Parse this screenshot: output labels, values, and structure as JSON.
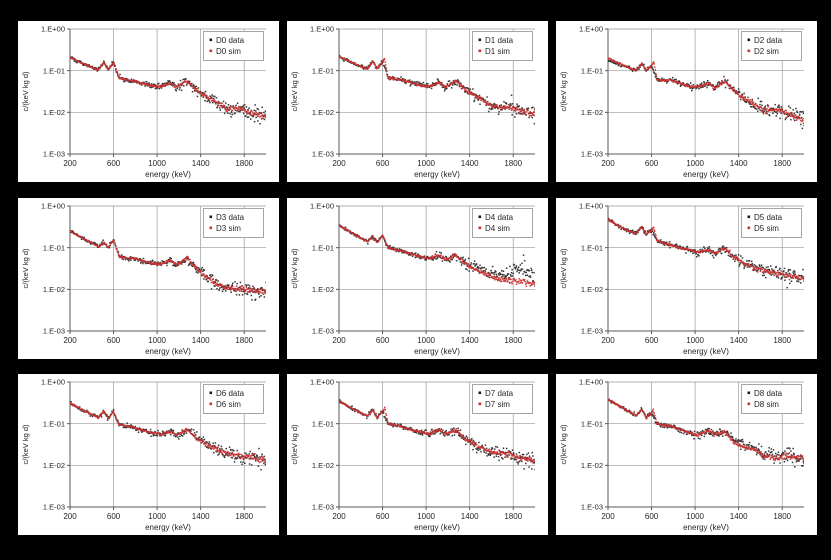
{
  "page": {
    "background": "#000000",
    "panel_background": "#ffffff"
  },
  "colors": {
    "data_points": "#1a1a1a",
    "sim_points": "#cc3030",
    "grid": "#999999",
    "axis": "#595959",
    "legend_border": "#a6a6a6",
    "text": "#262626"
  },
  "chart_data": {
    "type": "scatter",
    "shared_axes": {
      "xlabel": "energy (keV)",
      "ylabel": "c/(keV kg d)",
      "x_ticks": [
        200,
        600,
        1000,
        1400,
        1800
      ],
      "x_range": [
        200,
        2000
      ],
      "y_scale": "log",
      "y_tick_labels": [
        "1.E+00",
        "1.E-01",
        "1.E-02",
        "1.E-03"
      ],
      "y_tick_decades": [
        0,
        -1,
        -2,
        -3
      ],
      "y_range": [
        0.001,
        1.0
      ],
      "grid_x": [
        600,
        1000,
        1400,
        1800
      ],
      "grid_y_decades": [
        0,
        -1,
        -2
      ],
      "legend_position": "top-right"
    },
    "charts": [
      {
        "id": "D0",
        "legend": [
          "D0 data",
          "D0 sim"
        ],
        "profile": [
          [
            200,
            0.21
          ],
          [
            300,
            0.155
          ],
          [
            400,
            0.12
          ],
          [
            460,
            0.105
          ],
          [
            511,
            0.16
          ],
          [
            550,
            0.105
          ],
          [
            600,
            0.16
          ],
          [
            650,
            0.068
          ],
          [
            720,
            0.06
          ],
          [
            780,
            0.058
          ],
          [
            860,
            0.05
          ],
          [
            950,
            0.044
          ],
          [
            1030,
            0.042
          ],
          [
            1120,
            0.05
          ],
          [
            1180,
            0.04
          ],
          [
            1275,
            0.056
          ],
          [
            1360,
            0.034
          ],
          [
            1450,
            0.024
          ],
          [
            1550,
            0.017
          ],
          [
            1650,
            0.012
          ],
          [
            1760,
            0.013
          ],
          [
            1850,
            0.01
          ],
          [
            1950,
            0.0085
          ],
          [
            2000,
            0.0075
          ]
        ],
        "sim_delta": null
      },
      {
        "id": "D1",
        "legend": [
          "D1 data",
          "D1 sim"
        ],
        "profile": [
          [
            200,
            0.22
          ],
          [
            300,
            0.165
          ],
          [
            400,
            0.125
          ],
          [
            460,
            0.11
          ],
          [
            511,
            0.17
          ],
          [
            550,
            0.11
          ],
          [
            600,
            0.165
          ],
          [
            650,
            0.07
          ],
          [
            720,
            0.062
          ],
          [
            780,
            0.06
          ],
          [
            860,
            0.052
          ],
          [
            950,
            0.045
          ],
          [
            1030,
            0.042
          ],
          [
            1120,
            0.052
          ],
          [
            1180,
            0.04
          ],
          [
            1275,
            0.057
          ],
          [
            1360,
            0.035
          ],
          [
            1450,
            0.025
          ],
          [
            1550,
            0.018
          ],
          [
            1650,
            0.013
          ],
          [
            1760,
            0.0135
          ],
          [
            1850,
            0.011
          ],
          [
            1950,
            0.0095
          ],
          [
            2000,
            0.009
          ]
        ],
        "sim_delta": [
          [
            620,
            0.19
          ]
        ]
      },
      {
        "id": "D2",
        "legend": [
          "D2 data",
          "D2 sim"
        ],
        "profile": [
          [
            200,
            0.175
          ],
          [
            300,
            0.14
          ],
          [
            400,
            0.115
          ],
          [
            460,
            0.1
          ],
          [
            511,
            0.15
          ],
          [
            550,
            0.1
          ],
          [
            600,
            0.13
          ],
          [
            650,
            0.062
          ],
          [
            720,
            0.058
          ],
          [
            780,
            0.06
          ],
          [
            860,
            0.05
          ],
          [
            950,
            0.042
          ],
          [
            1030,
            0.04
          ],
          [
            1120,
            0.05
          ],
          [
            1180,
            0.038
          ],
          [
            1275,
            0.055
          ],
          [
            1360,
            0.032
          ],
          [
            1450,
            0.022
          ],
          [
            1550,
            0.015
          ],
          [
            1650,
            0.011
          ],
          [
            1760,
            0.0115
          ],
          [
            1850,
            0.009
          ],
          [
            1950,
            0.0075
          ],
          [
            2000,
            0.007
          ]
        ],
        "sim_delta": [
          [
            200,
            0.2
          ],
          [
            300,
            0.15
          ],
          [
            620,
            0.17
          ]
        ]
      },
      {
        "id": "D3",
        "legend": [
          "D3 data",
          "D3 sim"
        ],
        "profile": [
          [
            200,
            0.25
          ],
          [
            300,
            0.18
          ],
          [
            400,
            0.13
          ],
          [
            460,
            0.105
          ],
          [
            511,
            0.135
          ],
          [
            550,
            0.1
          ],
          [
            600,
            0.155
          ],
          [
            650,
            0.062
          ],
          [
            720,
            0.055
          ],
          [
            780,
            0.057
          ],
          [
            860,
            0.048
          ],
          [
            950,
            0.042
          ],
          [
            1030,
            0.04
          ],
          [
            1120,
            0.05
          ],
          [
            1180,
            0.038
          ],
          [
            1275,
            0.056
          ],
          [
            1360,
            0.032
          ],
          [
            1450,
            0.02
          ],
          [
            1550,
            0.013
          ],
          [
            1650,
            0.0105
          ],
          [
            1760,
            0.01
          ],
          [
            1850,
            0.0095
          ],
          [
            1950,
            0.009
          ],
          [
            2000,
            0.0088
          ]
        ],
        "sim_delta": null
      },
      {
        "id": "D4",
        "legend": [
          "D4 data",
          "D4 sim"
        ],
        "profile": [
          [
            200,
            0.35
          ],
          [
            300,
            0.24
          ],
          [
            400,
            0.17
          ],
          [
            460,
            0.14
          ],
          [
            511,
            0.185
          ],
          [
            550,
            0.13
          ],
          [
            600,
            0.2
          ],
          [
            650,
            0.1
          ],
          [
            720,
            0.088
          ],
          [
            780,
            0.082
          ],
          [
            860,
            0.072
          ],
          [
            950,
            0.06
          ],
          [
            1030,
            0.055
          ],
          [
            1120,
            0.066
          ],
          [
            1180,
            0.052
          ],
          [
            1275,
            0.065
          ],
          [
            1360,
            0.042
          ],
          [
            1450,
            0.035
          ],
          [
            1550,
            0.028
          ],
          [
            1650,
            0.022
          ],
          [
            1760,
            0.023
          ],
          [
            1850,
            0.03
          ],
          [
            1900,
            0.035
          ],
          [
            1950,
            0.028
          ],
          [
            2000,
            0.019
          ]
        ],
        "sim_delta": [
          [
            1450,
            0.03
          ],
          [
            1550,
            0.023
          ],
          [
            1650,
            0.018
          ],
          [
            1760,
            0.016
          ],
          [
            1850,
            0.015
          ],
          [
            1900,
            0.0148
          ],
          [
            1950,
            0.0145
          ],
          [
            2000,
            0.014
          ]
        ]
      },
      {
        "id": "D5",
        "legend": [
          "D5 data",
          "D5 sim"
        ],
        "profile": [
          [
            200,
            0.48
          ],
          [
            300,
            0.33
          ],
          [
            400,
            0.245
          ],
          [
            460,
            0.225
          ],
          [
            511,
            0.32
          ],
          [
            550,
            0.21
          ],
          [
            600,
            0.27
          ],
          [
            650,
            0.15
          ],
          [
            720,
            0.125
          ],
          [
            780,
            0.115
          ],
          [
            860,
            0.1
          ],
          [
            950,
            0.088
          ],
          [
            1030,
            0.077
          ],
          [
            1120,
            0.088
          ],
          [
            1180,
            0.074
          ],
          [
            1275,
            0.095
          ],
          [
            1360,
            0.058
          ],
          [
            1450,
            0.043
          ],
          [
            1550,
            0.032
          ],
          [
            1650,
            0.027
          ],
          [
            1760,
            0.024
          ],
          [
            1850,
            0.022
          ],
          [
            1950,
            0.019
          ],
          [
            2000,
            0.018
          ]
        ],
        "sim_delta": [
          [
            620,
            0.31
          ]
        ]
      },
      {
        "id": "D6",
        "legend": [
          "D6 data",
          "D6 sim"
        ],
        "profile": [
          [
            200,
            0.31
          ],
          [
            300,
            0.225
          ],
          [
            400,
            0.165
          ],
          [
            460,
            0.14
          ],
          [
            511,
            0.2
          ],
          [
            550,
            0.13
          ],
          [
            600,
            0.195
          ],
          [
            650,
            0.095
          ],
          [
            720,
            0.088
          ],
          [
            780,
            0.083
          ],
          [
            860,
            0.07
          ],
          [
            950,
            0.06
          ],
          [
            1030,
            0.054
          ],
          [
            1120,
            0.067
          ],
          [
            1180,
            0.053
          ],
          [
            1275,
            0.073
          ],
          [
            1360,
            0.045
          ],
          [
            1450,
            0.032
          ],
          [
            1550,
            0.023
          ],
          [
            1650,
            0.019
          ],
          [
            1760,
            0.017
          ],
          [
            1850,
            0.016
          ],
          [
            1950,
            0.014
          ],
          [
            2000,
            0.0125
          ]
        ],
        "sim_delta": null
      },
      {
        "id": "D7",
        "legend": [
          "D7 data",
          "D7 sim"
        ],
        "profile": [
          [
            200,
            0.35
          ],
          [
            300,
            0.25
          ],
          [
            400,
            0.18
          ],
          [
            460,
            0.15
          ],
          [
            511,
            0.215
          ],
          [
            550,
            0.14
          ],
          [
            600,
            0.2
          ],
          [
            650,
            0.1
          ],
          [
            720,
            0.09
          ],
          [
            780,
            0.085
          ],
          [
            860,
            0.072
          ],
          [
            950,
            0.062
          ],
          [
            1030,
            0.056
          ],
          [
            1120,
            0.073
          ],
          [
            1180,
            0.056
          ],
          [
            1275,
            0.07
          ],
          [
            1360,
            0.044
          ],
          [
            1450,
            0.031
          ],
          [
            1550,
            0.023
          ],
          [
            1650,
            0.019
          ],
          [
            1760,
            0.019
          ],
          [
            1850,
            0.015
          ],
          [
            1950,
            0.0135
          ],
          [
            2000,
            0.013
          ]
        ],
        "sim_delta": [
          [
            620,
            0.24
          ]
        ]
      },
      {
        "id": "D8",
        "legend": [
          "D8 data",
          "D8 sim"
        ],
        "profile": [
          [
            200,
            0.38
          ],
          [
            300,
            0.27
          ],
          [
            400,
            0.19
          ],
          [
            460,
            0.155
          ],
          [
            511,
            0.22
          ],
          [
            550,
            0.14
          ],
          [
            600,
            0.18
          ],
          [
            650,
            0.1
          ],
          [
            720,
            0.09
          ],
          [
            780,
            0.088
          ],
          [
            860,
            0.072
          ],
          [
            950,
            0.06
          ],
          [
            1030,
            0.052
          ],
          [
            1120,
            0.07
          ],
          [
            1180,
            0.054
          ],
          [
            1275,
            0.066
          ],
          [
            1360,
            0.042
          ],
          [
            1450,
            0.031
          ],
          [
            1550,
            0.024
          ],
          [
            1650,
            0.019
          ],
          [
            1760,
            0.017
          ],
          [
            1850,
            0.017
          ],
          [
            1950,
            0.015
          ],
          [
            2000,
            0.014
          ]
        ],
        "sim_delta": [
          [
            615,
            0.22
          ],
          [
            1360,
            0.034
          ],
          [
            1450,
            0.027
          ],
          [
            1650,
            0.0155
          ],
          [
            1760,
            0.0145
          ]
        ]
      }
    ]
  }
}
